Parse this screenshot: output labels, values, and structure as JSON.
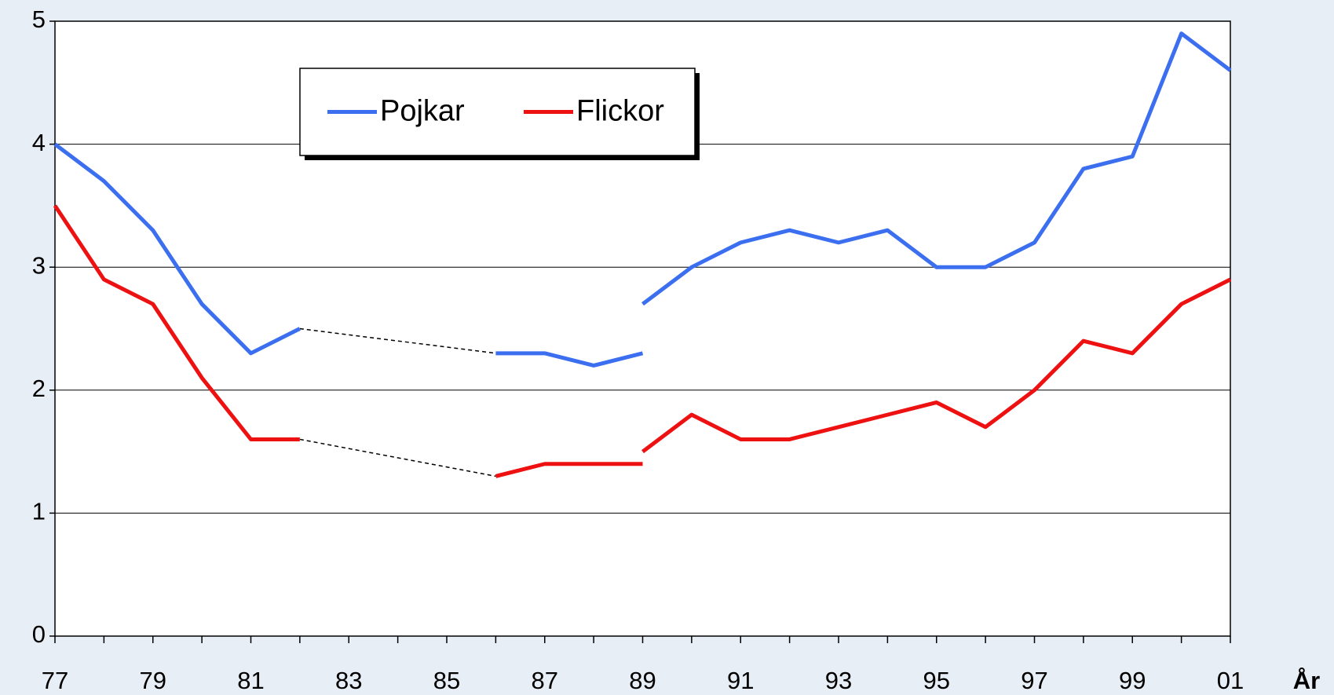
{
  "chart_data": {
    "type": "line",
    "categories": [
      "77",
      null,
      "79",
      null,
      "81",
      null,
      "83",
      null,
      "85",
      null,
      "87",
      null,
      "89",
      null,
      "91",
      null,
      "93",
      null,
      "95",
      null,
      "97",
      null,
      "99",
      null,
      "01"
    ],
    "x_label": "År",
    "series": [
      {
        "name": "Pojkar",
        "color": "#3b6ff0",
        "gap_style": "dashed",
        "values": [
          4.0,
          3.7,
          3.3,
          2.7,
          2.3,
          2.5,
          null,
          null,
          null,
          2.3,
          2.3,
          2.2,
          2.3,
          null,
          null,
          null,
          null,
          null,
          null,
          null,
          null,
          null,
          null,
          null,
          null
        ]
      },
      {
        "name": "Flickor",
        "color": "#ee1111",
        "gap_style": "dashed",
        "values": [
          3.5,
          2.9,
          2.7,
          2.1,
          1.6,
          1.6,
          null,
          null,
          null,
          1.3,
          1.4,
          1.4,
          1.4,
          null,
          null,
          null,
          null,
          null,
          null,
          null,
          null,
          null,
          null,
          null,
          null
        ]
      },
      {
        "name": "Pojkar",
        "color": "#3b6ff0",
        "values": [
          null,
          null,
          null,
          null,
          null,
          null,
          null,
          null,
          null,
          null,
          null,
          null,
          2.7,
          3.0,
          3.2,
          3.3,
          3.2,
          3.3,
          3.0,
          3.0,
          3.2,
          3.8,
          3.9,
          4.9,
          4.6
        ]
      },
      {
        "name": "Flickor",
        "color": "#ee1111",
        "values": [
          null,
          null,
          null,
          null,
          null,
          null,
          null,
          null,
          null,
          null,
          null,
          null,
          1.5,
          1.8,
          1.6,
          1.6,
          1.7,
          1.8,
          1.9,
          1.7,
          2.0,
          2.4,
          2.3,
          2.7,
          2.9
        ]
      }
    ],
    "ylim": [
      0,
      5
    ],
    "yticks": [
      0,
      1,
      2,
      3,
      4,
      5
    ],
    "grid": true
  }
}
